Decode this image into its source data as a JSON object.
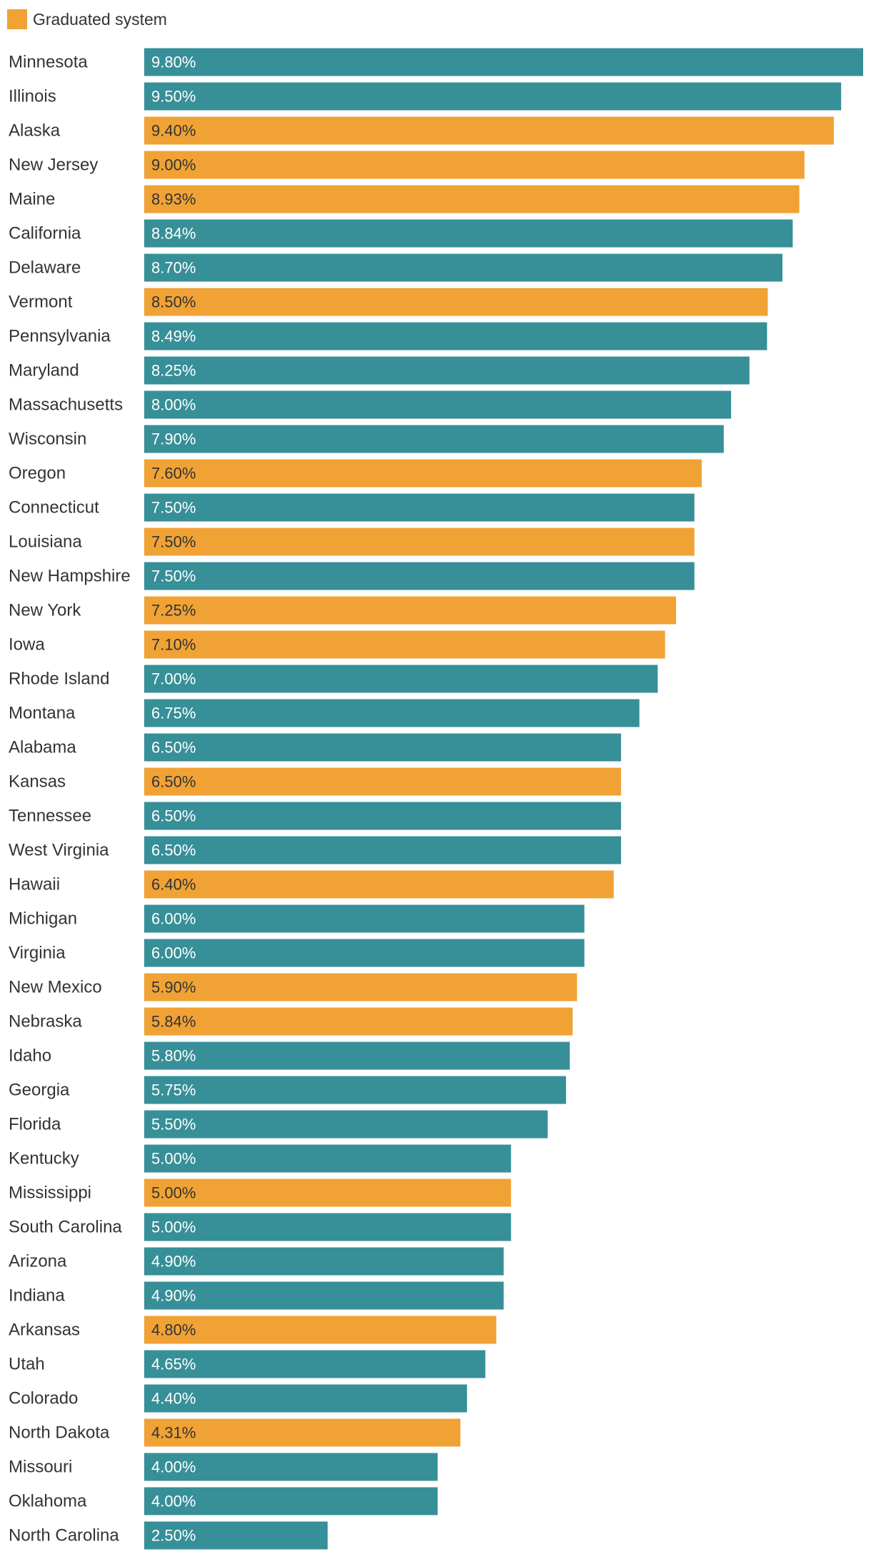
{
  "legend": {
    "items": [
      {
        "label": "Graduated system",
        "color": "#f0a235"
      }
    ]
  },
  "chart_data": {
    "type": "bar",
    "orientation": "horizontal",
    "title": "",
    "xlabel": "",
    "ylabel": "",
    "xlim": [
      0,
      9.8
    ],
    "grid": false,
    "legend_position": "top-left",
    "colors": {
      "graduated": "#f0a235",
      "flat": "#378f98",
      "label_on_graduated": "#333333",
      "label_on_flat": "#ffffff"
    },
    "rows": [
      {
        "category": "Minnesota",
        "value": 9.8,
        "label": "9.80%",
        "graduated": false
      },
      {
        "category": "Illinois",
        "value": 9.5,
        "label": "9.50%",
        "graduated": false
      },
      {
        "category": "Alaska",
        "value": 9.4,
        "label": "9.40%",
        "graduated": true
      },
      {
        "category": "New Jersey",
        "value": 9.0,
        "label": "9.00%",
        "graduated": true
      },
      {
        "category": "Maine",
        "value": 8.93,
        "label": "8.93%",
        "graduated": true
      },
      {
        "category": "California",
        "value": 8.84,
        "label": "8.84%",
        "graduated": false
      },
      {
        "category": "Delaware",
        "value": 8.7,
        "label": "8.70%",
        "graduated": false
      },
      {
        "category": "Vermont",
        "value": 8.5,
        "label": "8.50%",
        "graduated": true
      },
      {
        "category": "Pennsylvania",
        "value": 8.49,
        "label": "8.49%",
        "graduated": false
      },
      {
        "category": "Maryland",
        "value": 8.25,
        "label": "8.25%",
        "graduated": false
      },
      {
        "category": "Massachusetts",
        "value": 8.0,
        "label": "8.00%",
        "graduated": false
      },
      {
        "category": "Wisconsin",
        "value": 7.9,
        "label": "7.90%",
        "graduated": false
      },
      {
        "category": "Oregon",
        "value": 7.6,
        "label": "7.60%",
        "graduated": true
      },
      {
        "category": "Connecticut",
        "value": 7.5,
        "label": "7.50%",
        "graduated": false
      },
      {
        "category": "Louisiana",
        "value": 7.5,
        "label": "7.50%",
        "graduated": true
      },
      {
        "category": "New Hampshire",
        "value": 7.5,
        "label": "7.50%",
        "graduated": false
      },
      {
        "category": "New York",
        "value": 7.25,
        "label": "7.25%",
        "graduated": true
      },
      {
        "category": "Iowa",
        "value": 7.1,
        "label": "7.10%",
        "graduated": true
      },
      {
        "category": "Rhode Island",
        "value": 7.0,
        "label": "7.00%",
        "graduated": false
      },
      {
        "category": "Montana",
        "value": 6.75,
        "label": "6.75%",
        "graduated": false
      },
      {
        "category": "Alabama",
        "value": 6.5,
        "label": "6.50%",
        "graduated": false
      },
      {
        "category": "Kansas",
        "value": 6.5,
        "label": "6.50%",
        "graduated": true
      },
      {
        "category": "Tennessee",
        "value": 6.5,
        "label": "6.50%",
        "graduated": false
      },
      {
        "category": "West Virginia",
        "value": 6.5,
        "label": "6.50%",
        "graduated": false
      },
      {
        "category": "Hawaii",
        "value": 6.4,
        "label": "6.40%",
        "graduated": true
      },
      {
        "category": "Michigan",
        "value": 6.0,
        "label": "6.00%",
        "graduated": false
      },
      {
        "category": "Virginia",
        "value": 6.0,
        "label": "6.00%",
        "graduated": false
      },
      {
        "category": "New Mexico",
        "value": 5.9,
        "label": "5.90%",
        "graduated": true
      },
      {
        "category": "Nebraska",
        "value": 5.84,
        "label": "5.84%",
        "graduated": true
      },
      {
        "category": "Idaho",
        "value": 5.8,
        "label": "5.80%",
        "graduated": false
      },
      {
        "category": "Georgia",
        "value": 5.75,
        "label": "5.75%",
        "graduated": false
      },
      {
        "category": "Florida",
        "value": 5.5,
        "label": "5.50%",
        "graduated": false
      },
      {
        "category": "Kentucky",
        "value": 5.0,
        "label": "5.00%",
        "graduated": false
      },
      {
        "category": "Mississippi",
        "value": 5.0,
        "label": "5.00%",
        "graduated": true
      },
      {
        "category": "South Carolina",
        "value": 5.0,
        "label": "5.00%",
        "graduated": false
      },
      {
        "category": "Arizona",
        "value": 4.9,
        "label": "4.90%",
        "graduated": false
      },
      {
        "category": "Indiana",
        "value": 4.9,
        "label": "4.90%",
        "graduated": false
      },
      {
        "category": "Arkansas",
        "value": 4.8,
        "label": "4.80%",
        "graduated": true
      },
      {
        "category": "Utah",
        "value": 4.65,
        "label": "4.65%",
        "graduated": false
      },
      {
        "category": "Colorado",
        "value": 4.4,
        "label": "4.40%",
        "graduated": false
      },
      {
        "category": "North Dakota",
        "value": 4.31,
        "label": "4.31%",
        "graduated": true
      },
      {
        "category": "Missouri",
        "value": 4.0,
        "label": "4.00%",
        "graduated": false
      },
      {
        "category": "Oklahoma",
        "value": 4.0,
        "label": "4.00%",
        "graduated": false
      },
      {
        "category": "North Carolina",
        "value": 2.5,
        "label": "2.50%",
        "graduated": false
      }
    ]
  }
}
